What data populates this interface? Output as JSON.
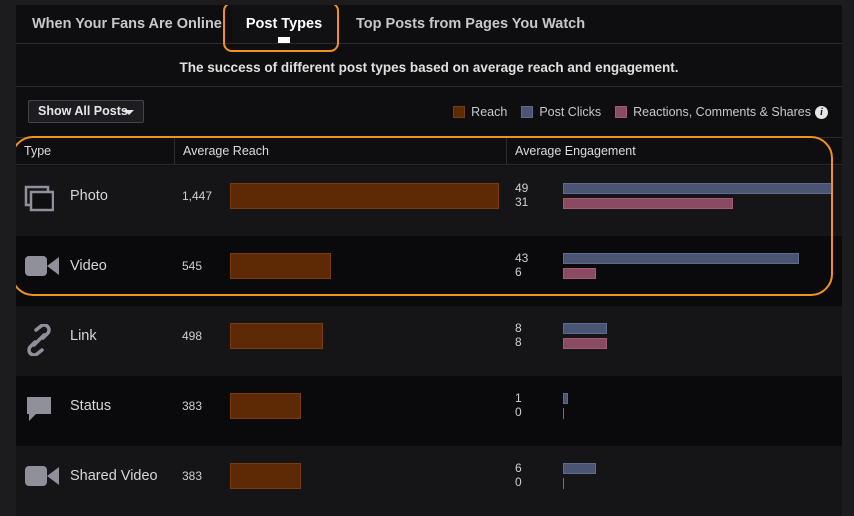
{
  "tabs": [
    {
      "label": "When Your Fans Are Online",
      "active": false
    },
    {
      "label": "Post Types",
      "active": true
    },
    {
      "label": "Top Posts from Pages You Watch",
      "active": false
    }
  ],
  "subtitle": "The success of different post types based on average reach and engagement.",
  "filter": {
    "label": "Show All Posts",
    "icon": "chevron-down-icon"
  },
  "legend": [
    {
      "label": "Reach",
      "color": "#5e2a05"
    },
    {
      "label": "Post Clicks",
      "color": "#4a5473"
    },
    {
      "label": "Reactions, Comments & Shares",
      "color": "#8a4a62"
    }
  ],
  "legend_info_icon": "i",
  "table": {
    "headers": [
      "Type",
      "Average Reach",
      "Average Engagement"
    ],
    "max_reach": 1447,
    "max_engagement": 49,
    "rows": [
      {
        "type": "Photo",
        "icon": "photo-icon",
        "reach": "1,447",
        "reach_value": 1447,
        "clicks": "49",
        "clicks_value": 49,
        "reactions": "31",
        "reactions_value": 31
      },
      {
        "type": "Video",
        "icon": "video-icon",
        "reach": "545",
        "reach_value": 545,
        "clicks": "43",
        "clicks_value": 43,
        "reactions": "6",
        "reactions_value": 6
      },
      {
        "type": "Link",
        "icon": "link-icon",
        "reach": "498",
        "reach_value": 498,
        "clicks": "8",
        "clicks_value": 8,
        "reactions": "8",
        "reactions_value": 8
      },
      {
        "type": "Status",
        "icon": "status-icon",
        "reach": "383",
        "reach_value": 383,
        "clicks": "1",
        "clicks_value": 1,
        "reactions": "0",
        "reactions_value": 0
      },
      {
        "type": "Shared Video",
        "icon": "video-icon",
        "reach": "383",
        "reach_value": 383,
        "clicks": "6",
        "clicks_value": 6,
        "reactions": "0",
        "reactions_value": 0
      }
    ]
  }
}
